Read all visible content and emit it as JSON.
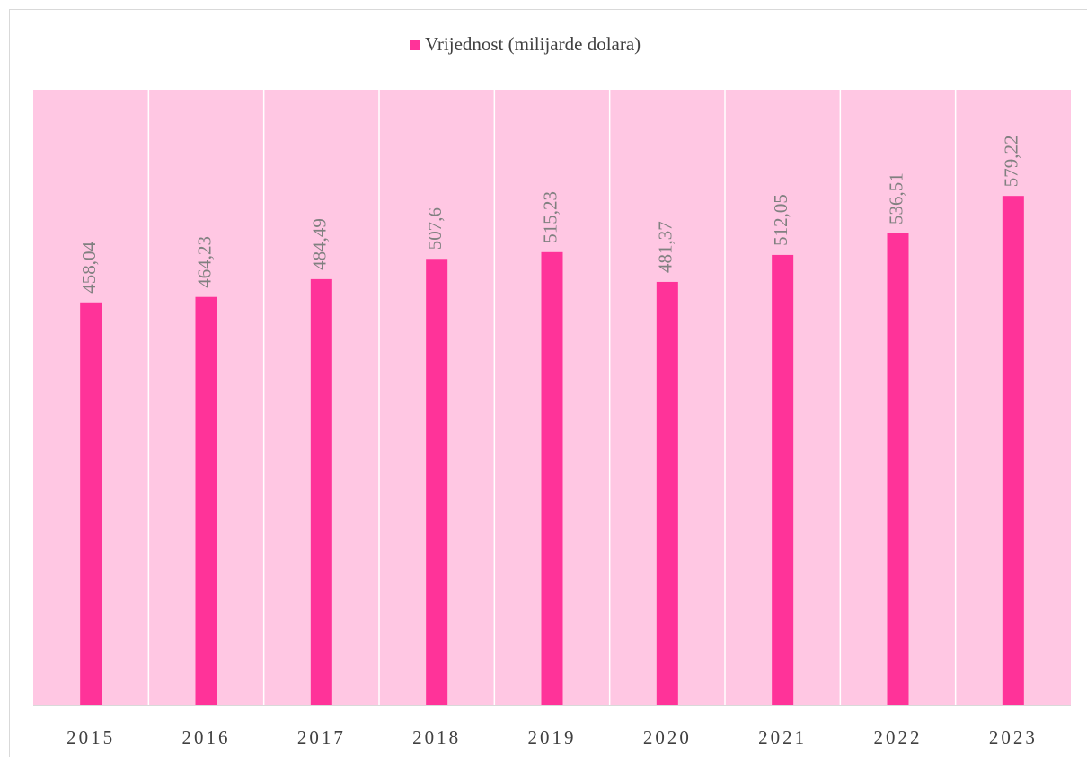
{
  "chart_data": {
    "type": "bar",
    "legend_label": "Vrijednost (milijarde dolara)",
    "series": [
      {
        "name": "Vrijednost (milijarde dolara)",
        "color": "#ff3399",
        "values": [
          458.04,
          464.23,
          484.49,
          507.6,
          515.23,
          481.37,
          512.05,
          536.51,
          579.22
        ],
        "value_labels": [
          "458,04",
          "464,23",
          "484,49",
          "507,6",
          "515,23",
          "481,37",
          "512,05",
          "536,51",
          "579,22"
        ]
      }
    ],
    "categories": [
      "2015",
      "2016",
      "2017",
      "2018",
      "2019",
      "2020",
      "2021",
      "2022",
      "2023"
    ],
    "ylim": [
      0,
      700
    ],
    "plot_background": "#ffc7e3",
    "legend": "top"
  }
}
